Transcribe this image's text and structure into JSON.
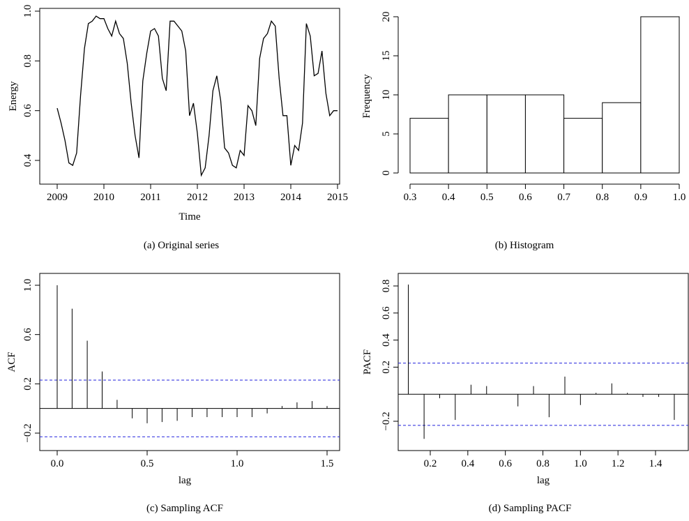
{
  "chart_data": [
    {
      "type": "line",
      "caption": "(a)  Original series",
      "xlabel": "Time",
      "ylabel": "Energy",
      "xlim": [
        2009,
        2015
      ],
      "ylim": [
        0.34,
        0.98
      ],
      "xticks": [
        2009,
        2010,
        2011,
        2012,
        2013,
        2014,
        2015
      ],
      "xtick_labels": [
        "2009",
        "2010",
        "2011",
        "2012",
        "2013",
        "2014",
        "2015"
      ],
      "yticks": [
        0.4,
        0.6,
        0.8,
        1.0
      ],
      "ytick_labels": [
        "0.4",
        "0.6",
        "0.8",
        "1.0"
      ],
      "x": [
        2009.0,
        2009.083,
        2009.167,
        2009.25,
        2009.333,
        2009.417,
        2009.5,
        2009.583,
        2009.667,
        2009.75,
        2009.833,
        2009.917,
        2010.0,
        2010.083,
        2010.167,
        2010.25,
        2010.333,
        2010.417,
        2010.5,
        2010.583,
        2010.667,
        2010.75,
        2010.833,
        2010.917,
        2011.0,
        2011.083,
        2011.167,
        2011.25,
        2011.333,
        2011.417,
        2011.5,
        2011.583,
        2011.667,
        2011.75,
        2011.833,
        2011.917,
        2012.0,
        2012.083,
        2012.167,
        2012.25,
        2012.333,
        2012.417,
        2012.5,
        2012.583,
        2012.667,
        2012.75,
        2012.833,
        2012.917,
        2013.0,
        2013.083,
        2013.167,
        2013.25,
        2013.333,
        2013.417,
        2013.5,
        2013.583,
        2013.667,
        2013.75,
        2013.833,
        2013.917,
        2014.0,
        2014.083,
        2014.167,
        2014.25,
        2014.333,
        2014.417,
        2014.5,
        2014.583,
        2014.667,
        2014.75,
        2014.833,
        2014.917,
        2015.0
      ],
      "y": [
        0.61,
        0.55,
        0.48,
        0.39,
        0.38,
        0.43,
        0.66,
        0.85,
        0.95,
        0.96,
        0.98,
        0.97,
        0.97,
        0.93,
        0.9,
        0.96,
        0.91,
        0.89,
        0.79,
        0.63,
        0.5,
        0.41,
        0.72,
        0.83,
        0.92,
        0.93,
        0.9,
        0.73,
        0.68,
        0.96,
        0.96,
        0.94,
        0.92,
        0.84,
        0.58,
        0.63,
        0.51,
        0.34,
        0.37,
        0.5,
        0.68,
        0.74,
        0.64,
        0.45,
        0.43,
        0.38,
        0.37,
        0.44,
        0.42,
        0.62,
        0.6,
        0.54,
        0.81,
        0.89,
        0.91,
        0.96,
        0.94,
        0.73,
        0.58,
        0.58,
        0.38,
        0.46,
        0.44,
        0.55,
        0.95,
        0.9,
        0.74,
        0.75,
        0.84,
        0.67,
        0.58,
        0.6,
        0.6
      ]
    },
    {
      "type": "bar",
      "caption": "(b)  Histogram",
      "xlabel": "",
      "ylabel": "Frequency",
      "bins": [
        [
          0.3,
          0.4
        ],
        [
          0.4,
          0.5
        ],
        [
          0.5,
          0.6
        ],
        [
          0.6,
          0.7
        ],
        [
          0.7,
          0.8
        ],
        [
          0.8,
          0.9
        ],
        [
          0.9,
          1.0
        ]
      ],
      "values": [
        7,
        10,
        10,
        10,
        7,
        9,
        20
      ],
      "xlim": [
        0.3,
        1.0
      ],
      "ylim": [
        0,
        20
      ],
      "xticks": [
        0.3,
        0.4,
        0.5,
        0.6,
        0.7,
        0.8,
        0.9,
        1.0
      ],
      "xtick_labels": [
        "0.3",
        "0.4",
        "0.5",
        "0.6",
        "0.7",
        "0.8",
        "0.9",
        "1.0"
      ],
      "yticks": [
        0,
        5,
        10,
        15,
        20
      ],
      "ytick_labels": [
        "0",
        "5",
        "10",
        "15",
        "20"
      ]
    },
    {
      "type": "bar",
      "caption": "(c)  Sampling ACF",
      "xlabel": "lag",
      "ylabel": "ACF",
      "lags": [
        0.0,
        0.083,
        0.167,
        0.25,
        0.333,
        0.417,
        0.5,
        0.583,
        0.667,
        0.75,
        0.833,
        0.917,
        1.0,
        1.083,
        1.167,
        1.25,
        1.333,
        1.417,
        1.5
      ],
      "values": [
        1.0,
        0.81,
        0.55,
        0.3,
        0.07,
        -0.08,
        -0.12,
        -0.11,
        -0.1,
        -0.07,
        -0.07,
        -0.07,
        -0.07,
        -0.07,
        -0.04,
        0.02,
        0.05,
        0.06,
        0.02
      ],
      "confidence": [
        0.23,
        -0.23
      ],
      "xlim": [
        -0.02,
        1.57
      ],
      "ylim": [
        -0.3,
        1.0
      ],
      "xticks": [
        0.0,
        0.5,
        1.0,
        1.5
      ],
      "xtick_labels": [
        "0.0",
        "0.5",
        "1.0",
        "1.5"
      ],
      "yticks": [
        -0.2,
        0.2,
        0.6,
        1.0
      ],
      "ytick_labels": [
        "−0.2",
        "0.2",
        "0.6",
        "1.0"
      ]
    },
    {
      "type": "bar",
      "caption": "(d)  Sampling PACF",
      "xlabel": "lag",
      "ylabel": "PACF",
      "lags": [
        0.083,
        0.167,
        0.25,
        0.333,
        0.417,
        0.5,
        0.583,
        0.667,
        0.75,
        0.833,
        0.917,
        1.0,
        1.083,
        1.167,
        1.25,
        1.333,
        1.417,
        1.5
      ],
      "values": [
        0.81,
        -0.33,
        -0.03,
        -0.19,
        0.07,
        0.06,
        0.0,
        -0.09,
        0.06,
        -0.17,
        0.13,
        -0.08,
        0.01,
        0.08,
        0.01,
        -0.02,
        -0.02,
        -0.19
      ],
      "confidence": [
        0.23,
        -0.23
      ],
      "xlim": [
        0.07,
        1.51
      ],
      "ylim": [
        -0.36,
        0.81
      ],
      "xticks": [
        0.2,
        0.4,
        0.6,
        0.8,
        1.0,
        1.2,
        1.4
      ],
      "xtick_labels": [
        "0.2",
        "0.4",
        "0.6",
        "0.8",
        "1.0",
        "1.2",
        "1.4"
      ],
      "yticks": [
        -0.2,
        0.2,
        0.4,
        0.6,
        0.8
      ],
      "ytick_labels": [
        "−0.2",
        "0.2",
        "0.4",
        "0.6",
        "0.8"
      ]
    }
  ]
}
